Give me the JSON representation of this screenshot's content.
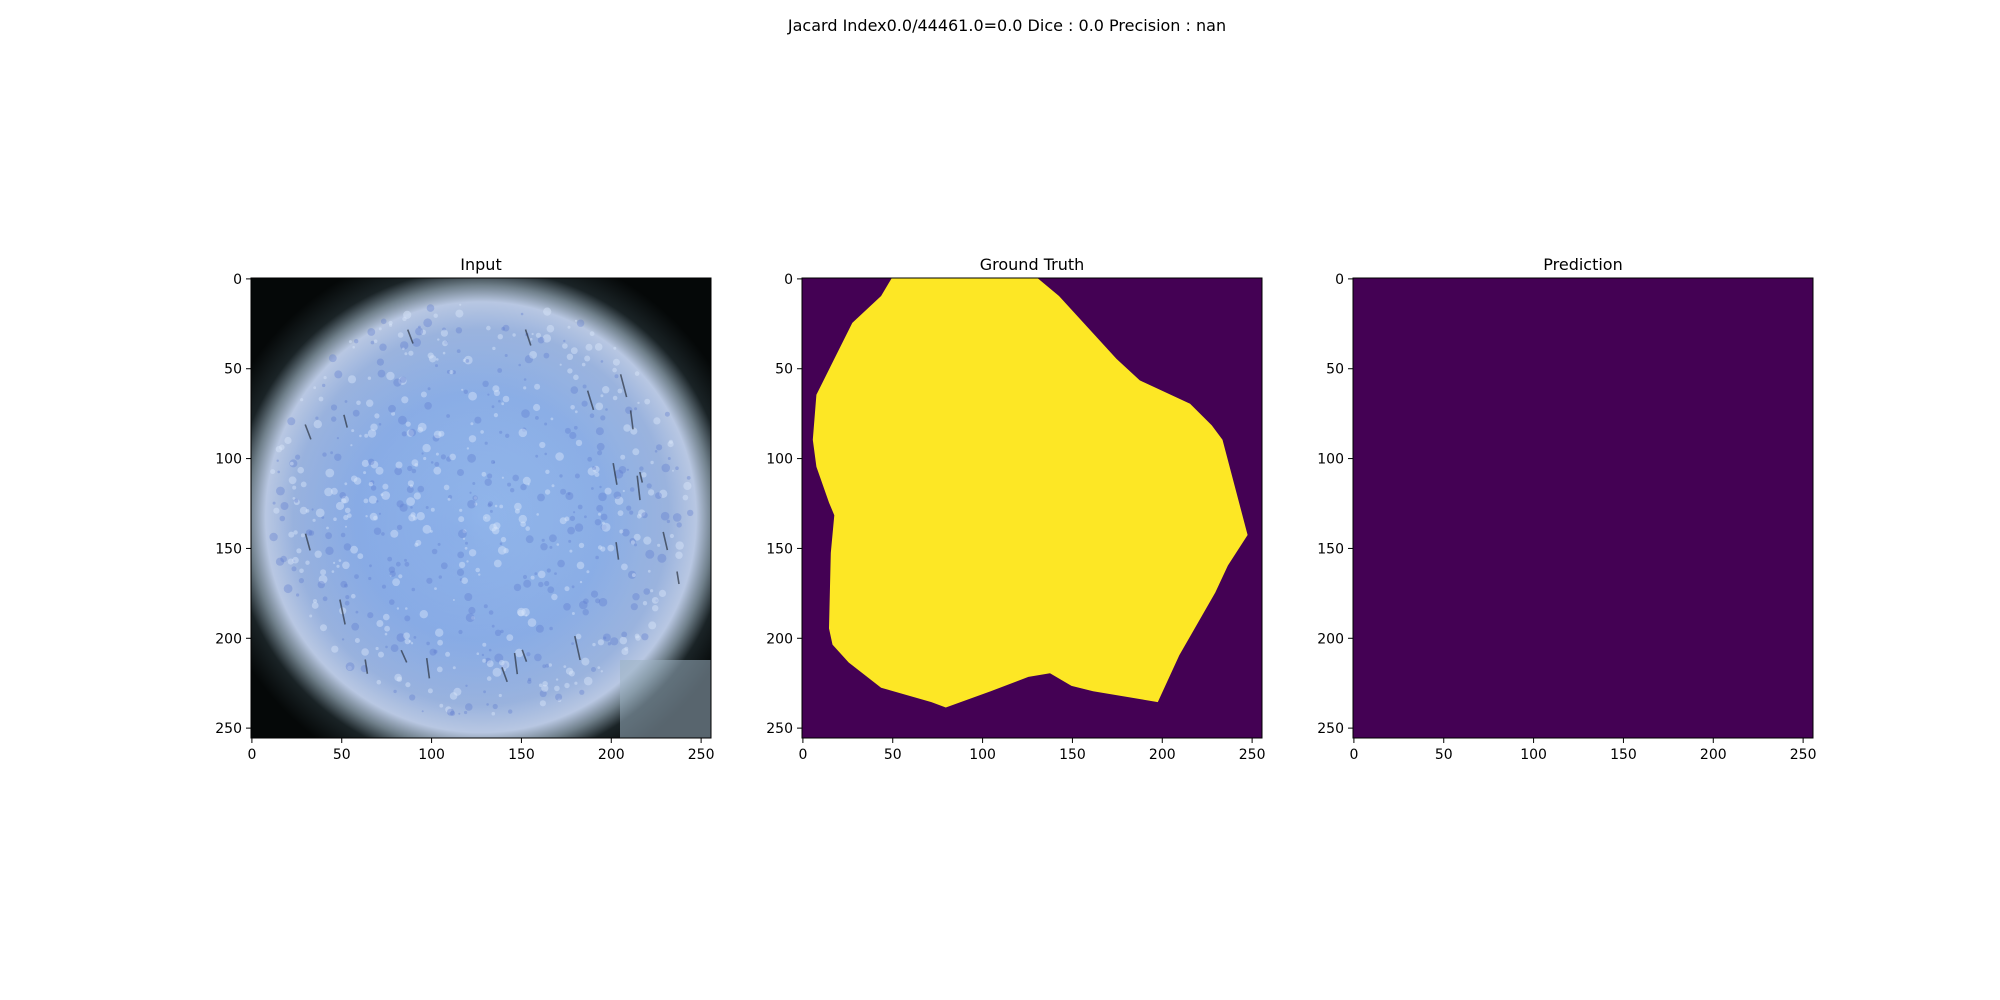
{
  "figure": {
    "suptitle": "Jacard Index0.0/44461.0=0.0 Dice : 0.0 Precision : nan"
  },
  "panels": [
    {
      "title": "Input",
      "image_type": "microscopy-photo"
    },
    {
      "title": "Ground Truth",
      "image_type": "segmentation-mask"
    },
    {
      "title": "Prediction",
      "image_type": "segmentation-mask-empty"
    }
  ],
  "axes": {
    "x_ticks": [
      "0",
      "50",
      "100",
      "150",
      "200",
      "250"
    ],
    "y_ticks": [
      "0",
      "50",
      "100",
      "150",
      "200",
      "250"
    ],
    "x_values": [
      0,
      50,
      100,
      150,
      200,
      250
    ],
    "y_values": [
      0,
      50,
      100,
      150,
      200,
      250
    ],
    "range": [
      0,
      255
    ]
  },
  "colors": {
    "mask_background": "#440154",
    "mask_foreground": "#fde725",
    "axis": "#000000"
  },
  "ground_truth_polygon": [
    [
      50,
      0
    ],
    [
      131,
      0
    ],
    [
      143,
      10
    ],
    [
      175,
      45
    ],
    [
      188,
      57
    ],
    [
      216,
      70
    ],
    [
      228,
      82
    ],
    [
      234,
      90
    ],
    [
      248,
      143
    ],
    [
      237,
      160
    ],
    [
      230,
      175
    ],
    [
      210,
      210
    ],
    [
      198,
      236
    ],
    [
      162,
      230
    ],
    [
      150,
      227
    ],
    [
      138,
      220
    ],
    [
      126,
      222
    ],
    [
      105,
      230
    ],
    [
      80,
      239
    ],
    [
      72,
      236
    ],
    [
      44,
      228
    ],
    [
      26,
      214
    ],
    [
      17,
      204
    ],
    [
      15,
      195
    ],
    [
      16,
      153
    ],
    [
      18,
      132
    ],
    [
      15,
      125
    ],
    [
      8,
      105
    ],
    [
      6,
      90
    ],
    [
      8,
      65
    ],
    [
      18,
      45
    ],
    [
      28,
      25
    ],
    [
      44,
      10
    ]
  ]
}
